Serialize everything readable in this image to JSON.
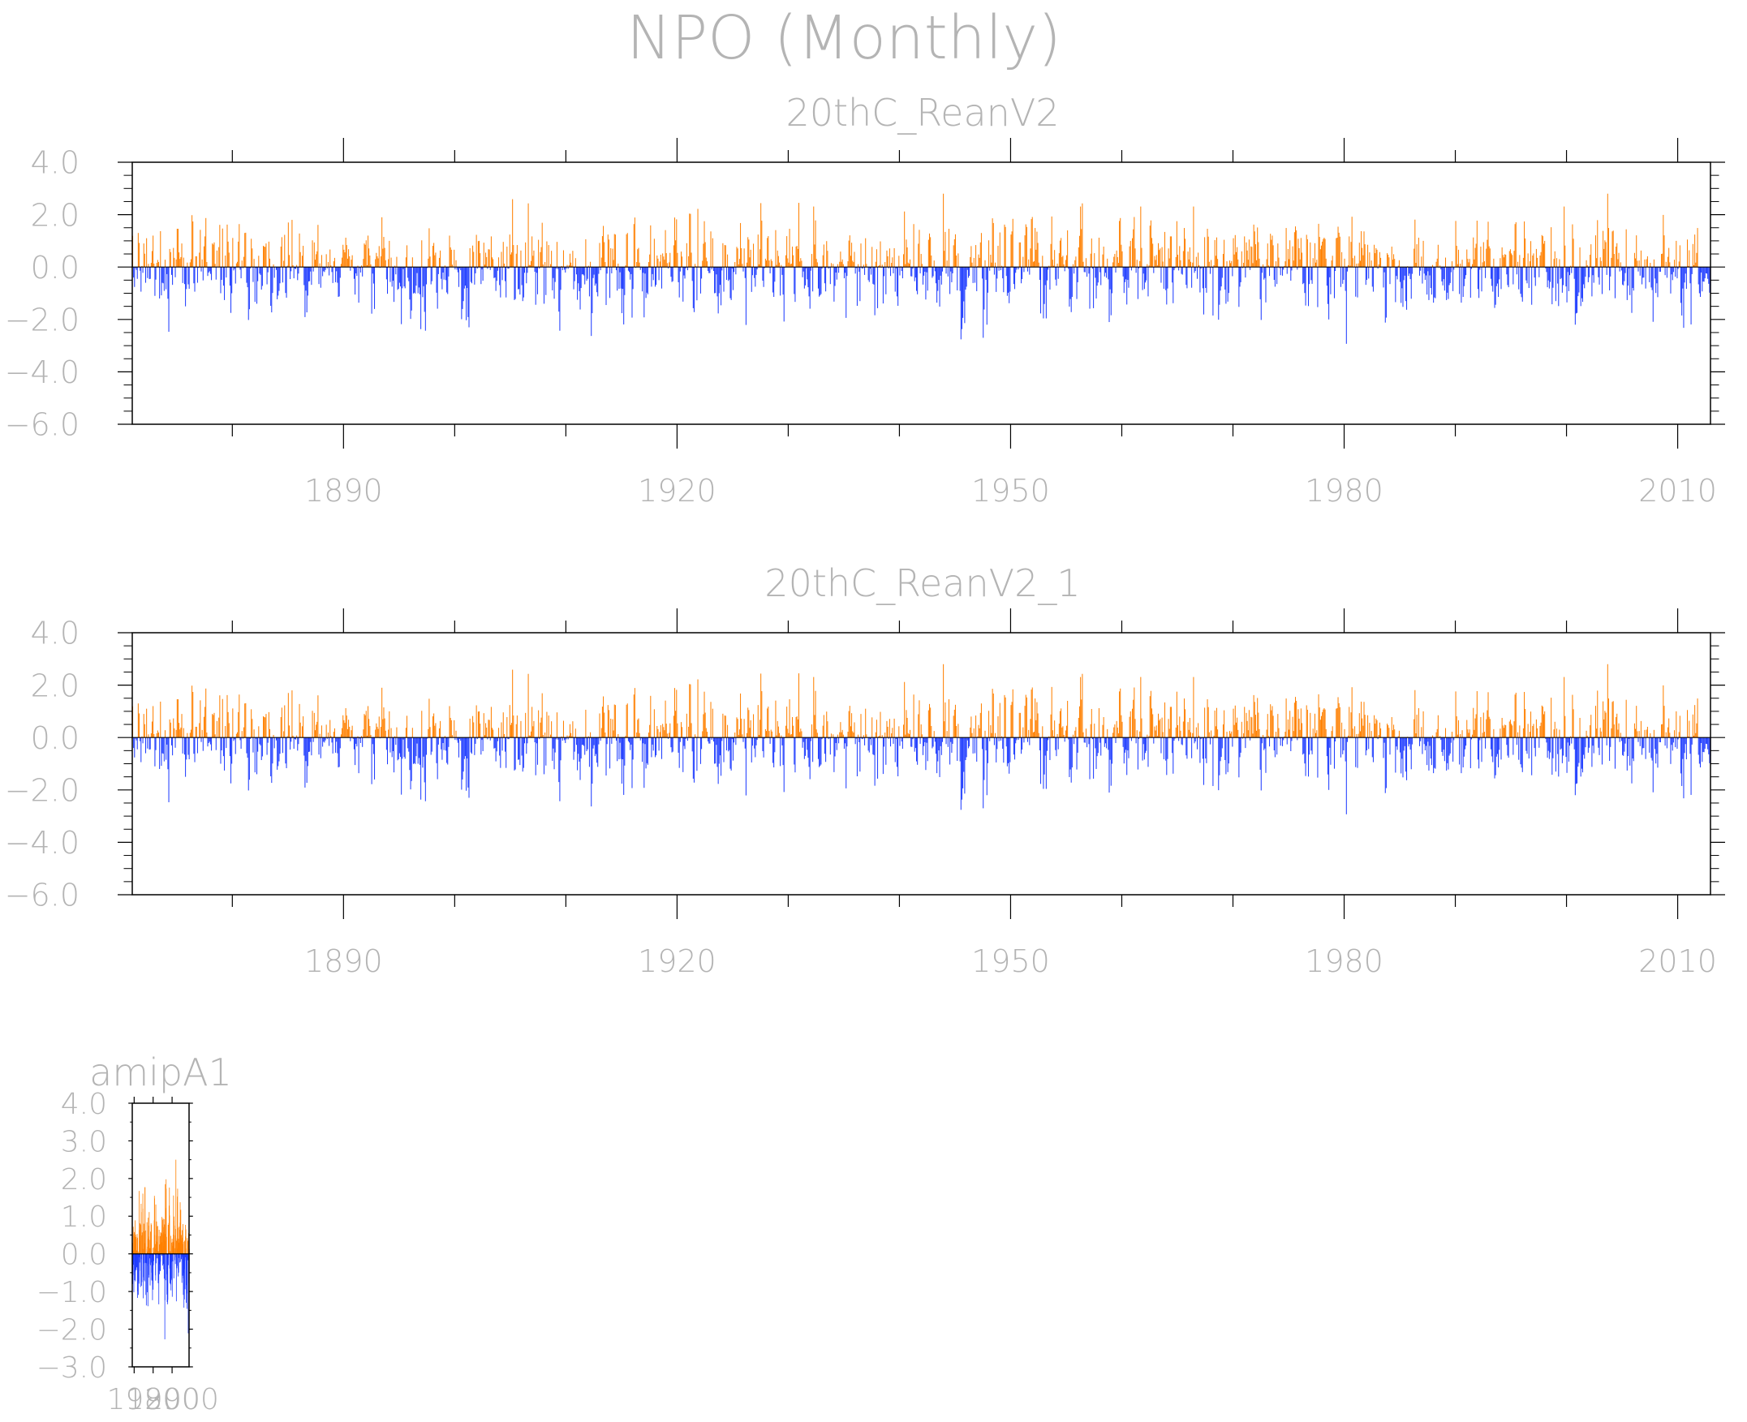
{
  "title": "NPO (Monthly)",
  "colors": {
    "positive": "#ff8000",
    "negative": "#1e3cff",
    "axis": "#000000",
    "text": "#b4b4b4",
    "faint": "#d8d8d8"
  },
  "chart_data": [
    {
      "type": "bar",
      "title": "20thC_ReanV2",
      "x_range": [
        1871.0,
        2012.95
      ],
      "ylim": [
        -6.0,
        4.0
      ],
      "yticks": [
        "4.0",
        "2.0",
        "0.0",
        "−2.0",
        "−4.0",
        "−6.0"
      ],
      "ytick_values": [
        4,
        2,
        0,
        -2,
        -4,
        -6
      ],
      "xticks": [
        "1890",
        "1920",
        "1950",
        "1980",
        "2010"
      ],
      "xtick_values": [
        1890,
        1920,
        1950,
        1980,
        2010
      ],
      "x_start": 1871.0,
      "values_per_year": 12,
      "series": [
        {
          "values": []
        }
      ]
    },
    {
      "type": "bar",
      "title": "20thC_ReanV2_1",
      "x_range": [
        1871.0,
        2012.95
      ],
      "ylim": [
        -6.0,
        4.0
      ],
      "yticks": [
        "4.0",
        "2.0",
        "0.0",
        "−2.0",
        "−4.0",
        "−6.0"
      ],
      "ytick_values": [
        4,
        2,
        0,
        -2,
        -4,
        -6
      ],
      "xticks": [
        "1890",
        "1920",
        "1950",
        "1980",
        "2010"
      ],
      "xtick_values": [
        1890,
        1920,
        1950,
        1980,
        2010
      ],
      "x_start": 1871.0,
      "values_per_year": 12,
      "series": [
        {
          "values": []
        }
      ]
    },
    {
      "type": "bar",
      "title": "amipA1",
      "x_range": [
        1979.0,
        2008.95
      ],
      "ylim": [
        -3.0,
        4.0
      ],
      "yticks": [
        "4.0",
        "3.0",
        "2.0",
        "1.0",
        "0.0",
        "−1.0",
        "−2.0",
        "−3.0"
      ],
      "ytick_values": [
        4,
        3,
        2,
        1,
        0,
        -1,
        -2,
        -3
      ],
      "xticks": [
        "1980",
        "1990",
        "2000"
      ],
      "xtick_values": [
        1980,
        1990,
        2000
      ],
      "x_start": 1979.0,
      "values_per_year": 12,
      "series": [
        {
          "values": []
        }
      ]
    }
  ]
}
